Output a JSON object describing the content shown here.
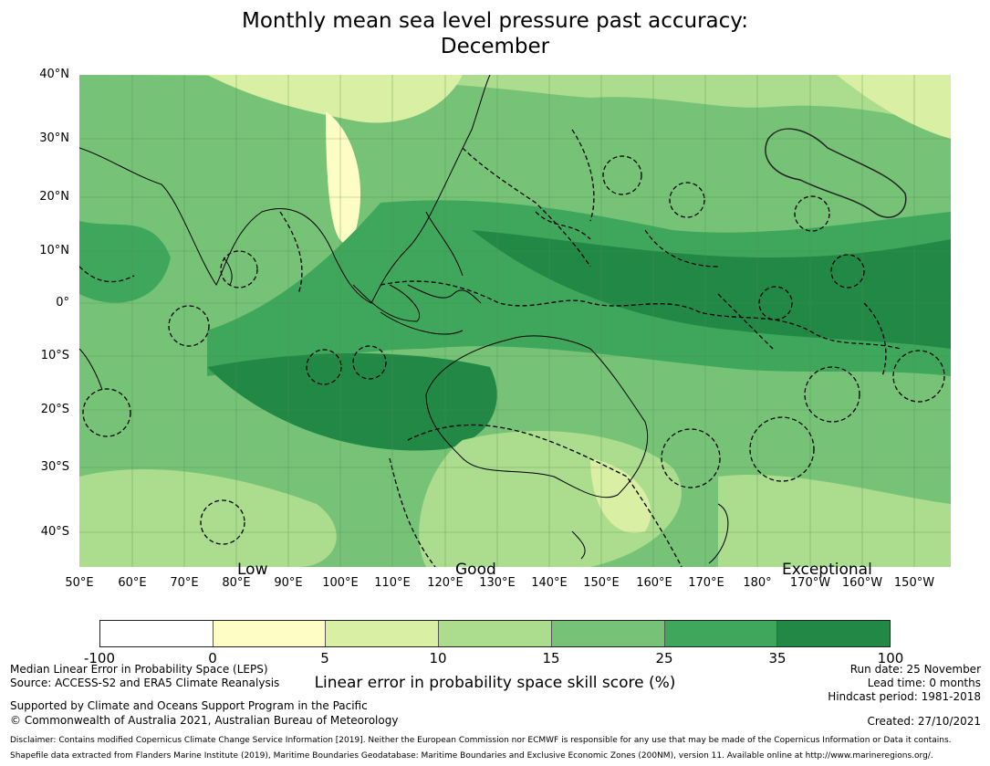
{
  "title": {
    "line1": "Monthly mean sea level pressure past accuracy:",
    "line2": "December"
  },
  "map": {
    "y_labels": [
      "40°N",
      "30°N",
      "20°N",
      "10°N",
      "0°",
      "10°S",
      "20°S",
      "30°S",
      "40°S"
    ],
    "x_labels": [
      "50°E",
      "60°E",
      "70°E",
      "80°E",
      "90°E",
      "100°E",
      "110°E",
      "120°E",
      "130°E",
      "140°E",
      "150°E",
      "160°E",
      "170°E",
      "180°",
      "170°W",
      "160°W",
      "150°W"
    ],
    "skill_labels": [
      "Low",
      "Good",
      "Exceptional"
    ]
  },
  "colorbar": {
    "ticks": [
      "-100",
      "0",
      "5",
      "10",
      "15",
      "25",
      "35",
      "100"
    ],
    "colors": [
      "#ffffff",
      "#fefdc6",
      "#d9efa3",
      "#acdc8e",
      "#76c377",
      "#3fa75c",
      "#228846"
    ],
    "label": "Linear error in probability space skill score (%)"
  },
  "footer": {
    "left1": "Median Linear Error in Probability Space (LEPS)",
    "left2": "Source: ACCESS-S2 and ERA5 Climate Reanalysis",
    "left3": "Supported by Climate and Oceans Support Program in the Pacific",
    "left4": "© Commonwealth of Australia 2021, Australian Bureau of Meteorology",
    "right1": "Run date: 25 November",
    "right2": "Lead time: 0 months",
    "right3": "Hindcast period: 1981-2018",
    "right4": "Created: 27/10/2021",
    "disclaimer1": "Disclaimer: Contains modified Copernicus Climate Change Service Information [2019]. Neither the European Commission nor ECMWF is responsible for any use that may be made of the Copernicus Information or Data it contains.",
    "disclaimer2": "Shapefile data extracted from Flanders Marine Institute (2019), Maritime Boundaries Geodatabase: Maritime Boundaries and Exclusive Economic Zones (200NM), version 11. Available online at http://www.marineregions.org/."
  }
}
